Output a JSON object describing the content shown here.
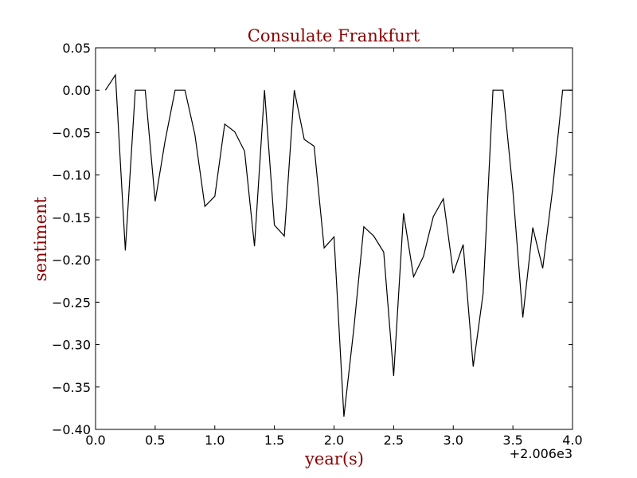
{
  "chart_data": {
    "type": "line",
    "title": "Consulate Frankfurt",
    "xlabel": "year(s)",
    "ylabel": "sentiment",
    "x_offset_label": "+2.006e3",
    "xlim": [
      0.0,
      4.0
    ],
    "ylim": [
      -0.4,
      0.05
    ],
    "xticks": [
      0.0,
      0.5,
      1.0,
      1.5,
      2.0,
      2.5,
      3.0,
      3.5,
      4.0
    ],
    "xtick_labels": [
      "0.0",
      "0.5",
      "1.0",
      "1.5",
      "2.0",
      "2.5",
      "3.0",
      "3.5",
      "4.0"
    ],
    "yticks": [
      0.05,
      0.0,
      -0.05,
      -0.1,
      -0.15,
      -0.2,
      -0.25,
      -0.3,
      -0.35,
      -0.4
    ],
    "ytick_labels": [
      "0.05",
      "0.00",
      "−0.05",
      "−0.10",
      "−0.15",
      "−0.20",
      "−0.25",
      "−0.30",
      "−0.35",
      "−0.40"
    ],
    "grid": false,
    "title_color": "#8b0000",
    "label_color": "#8b0000",
    "line_color": "#000000",
    "series": [
      {
        "x": [
          0.083,
          0.167,
          0.25,
          0.333,
          0.417,
          0.5,
          0.583,
          0.667,
          0.75,
          0.833,
          0.917,
          1.0,
          1.083,
          1.167,
          1.25,
          1.333,
          1.417,
          1.5,
          1.583,
          1.667,
          1.75,
          1.833,
          1.917,
          2.0,
          2.083,
          2.167,
          2.25,
          2.333,
          2.417,
          2.5,
          2.583,
          2.667,
          2.75,
          2.833,
          2.917,
          3.0,
          3.083,
          3.167,
          3.25,
          3.333,
          3.417,
          3.5,
          3.583,
          3.667,
          3.75,
          3.833,
          3.917,
          4.0
        ],
        "y": [
          0.0,
          0.018,
          -0.189,
          0.0,
          0.0,
          -0.131,
          -0.06,
          0.0,
          0.0,
          -0.052,
          -0.137,
          -0.125,
          -0.04,
          -0.049,
          -0.072,
          -0.184,
          0.0,
          -0.159,
          -0.172,
          0.0,
          -0.058,
          -0.066,
          -0.186,
          -0.173,
          -0.385,
          -0.28,
          -0.161,
          -0.172,
          -0.191,
          -0.337,
          -0.145,
          -0.22,
          -0.196,
          -0.149,
          -0.128,
          -0.216,
          -0.182,
          -0.326,
          -0.24,
          0.0,
          0.0,
          -0.118,
          -0.268,
          -0.162,
          -0.21,
          -0.117,
          0.0,
          0.0
        ]
      }
    ]
  }
}
